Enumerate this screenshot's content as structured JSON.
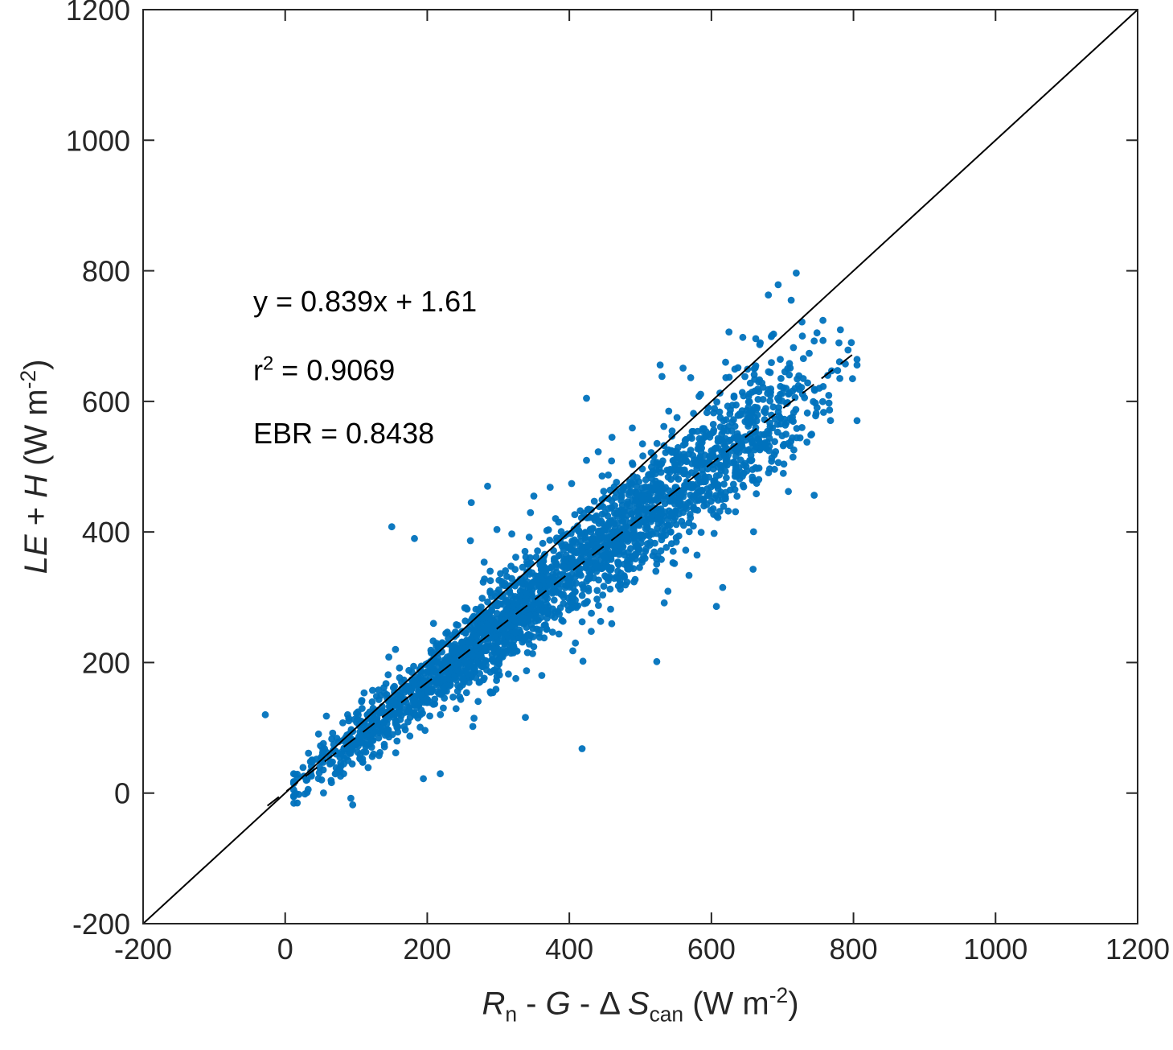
{
  "figure": {
    "background": "#ffffff"
  },
  "chart_data": {
    "type": "scatter",
    "title": "",
    "xlabel_plain": "Rn - G - ΔScan (W m-2)",
    "ylabel_plain": "LE + H (W m-2)",
    "xlabel_segments": [
      {
        "t": "R",
        "s": "i"
      },
      {
        "t": "n",
        "s": "sub"
      },
      {
        "t": " -  ",
        "s": "p"
      },
      {
        "t": "G",
        "s": "i"
      },
      {
        "t": " - Δ ",
        "s": "p"
      },
      {
        "t": "S",
        "s": "i"
      },
      {
        "t": "can",
        "s": "sub"
      },
      {
        "t": "  (W m",
        "s": "p"
      },
      {
        "t": "-2",
        "s": "sup"
      },
      {
        "t": ")",
        "s": "p"
      }
    ],
    "ylabel_segments": [
      {
        "t": "LE",
        "s": "i"
      },
      {
        "t": " + ",
        "s": "p"
      },
      {
        "t": "H",
        "s": "i"
      },
      {
        "t": " (W m",
        "s": "p"
      },
      {
        "t": "-2",
        "s": "sup"
      },
      {
        "t": ")",
        "s": "p"
      }
    ],
    "xlim": [
      -200,
      1200
    ],
    "ylim": [
      -200,
      1200
    ],
    "xticks": [
      -200,
      0,
      200,
      400,
      600,
      800,
      1000,
      1200
    ],
    "yticks": [
      -200,
      0,
      200,
      400,
      600,
      800,
      1000,
      1200
    ],
    "grid": false,
    "legend": "none",
    "axis_color": "#262626",
    "marker": {
      "color": "#0072BD",
      "radius": 4.4,
      "opacity": 0.95
    },
    "identity_line": {
      "x": [
        -200,
        1200
      ],
      "y": [
        -200,
        1200
      ],
      "style": "solid",
      "color": "#000000",
      "width": 2
    },
    "regression_line": {
      "slope": 0.839,
      "intercept": 1.61,
      "x_start": -25,
      "x_end": 805,
      "style": "dashed",
      "dash": "18 12",
      "color": "#000000",
      "width": 2
    },
    "stats": {
      "equation": "y = 0.839x + 1.61",
      "slope": 0.839,
      "intercept": 1.61,
      "r_squared": 0.9069,
      "ebr": 0.8438
    },
    "annotations": [
      {
        "name": "equation",
        "x": -45,
        "y": 750,
        "text": "y = 0.839x + 1.61"
      },
      {
        "name": "r-squared",
        "x": -45,
        "y": 645,
        "segments": [
          {
            "t": "r",
            "s": "p"
          },
          {
            "t": "2",
            "s": "sup"
          },
          {
            "t": " = 0.9069",
            "s": "p"
          }
        ]
      },
      {
        "name": "ebr",
        "x": -45,
        "y": 548,
        "text": "EBR = 0.8438"
      }
    ],
    "scatter_cloud": {
      "seed": 1337,
      "count": 2600,
      "clusters": [
        {
          "weight": 0.1,
          "mean": 115,
          "sd": 55
        },
        {
          "weight": 0.4,
          "mean": 280,
          "sd": 75
        },
        {
          "weight": 0.28,
          "mean": 470,
          "sd": 65
        },
        {
          "weight": 0.22,
          "mean": 630,
          "sd": 70
        }
      ],
      "x_min": 12,
      "x_max": 805,
      "noise_base": 15,
      "noise_slope": 0.06,
      "noise_cap": 52,
      "halo_fraction": 0.07,
      "halo_mult": 2.1
    },
    "outlier_points": [
      [
        -28,
        120
      ],
      [
        95,
        -18
      ],
      [
        418,
        68
      ],
      [
        150,
        408
      ],
      [
        182,
        390
      ],
      [
        262,
        445
      ],
      [
        285,
        470
      ],
      [
        350,
        455
      ],
      [
        797,
        690
      ],
      [
        757,
        724
      ],
      [
        728,
        700
      ],
      [
        540,
        585
      ],
      [
        460,
        545
      ],
      [
        58,
        118
      ],
      [
        620,
        660
      ],
      [
        680,
        618
      ]
    ]
  }
}
